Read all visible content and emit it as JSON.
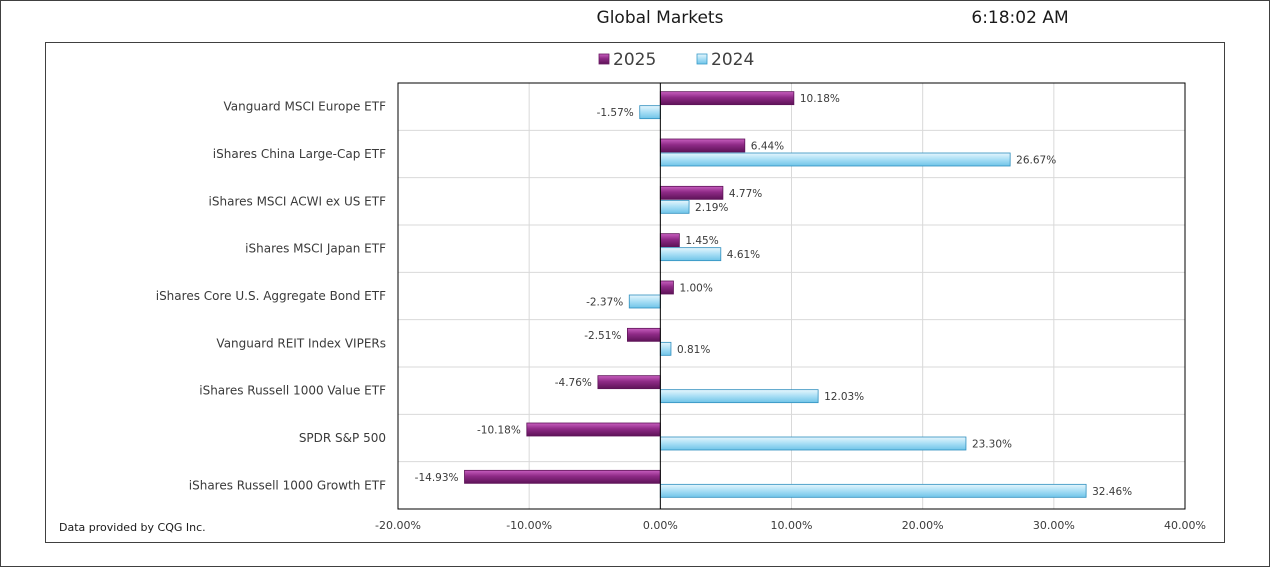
{
  "header": {
    "title": "Global Markets",
    "time": "6:18:02 AM"
  },
  "footer": {
    "source": "Data provided by CQG Inc."
  },
  "colors": {
    "series_2025": "#8e2a86",
    "series_2024": "#8fd3f0",
    "grid": "#d9d9d9",
    "axis": "#000000"
  },
  "chart_data": {
    "type": "bar",
    "orientation": "horizontal",
    "title": "Global Markets",
    "categories": [
      "Vanguard MSCI Europe ETF",
      "iShares China Large-Cap ETF",
      "iShares MSCI ACWI ex US ETF",
      "iShares MSCI Japan ETF",
      "iShares Core U.S. Aggregate Bond ETF",
      "Vanguard REIT Index VIPERs",
      "iShares Russell 1000 Value ETF",
      "SPDR S&P 500",
      "iShares Russell 1000 Growth ETF"
    ],
    "series": [
      {
        "name": "2025",
        "values": [
          10.18,
          6.44,
          4.77,
          1.45,
          1.0,
          -2.51,
          -4.76,
          -10.18,
          -14.93
        ],
        "labels": [
          "10.18%",
          "6.44%",
          "4.77%",
          "1.45%",
          "1.00%",
          "-2.51%",
          "-4.76%",
          "-10.18%",
          "-14.93%"
        ]
      },
      {
        "name": "2024",
        "values": [
          -1.57,
          26.67,
          2.19,
          4.61,
          -2.37,
          0.81,
          12.03,
          23.3,
          32.46
        ],
        "labels": [
          "-1.57%",
          "26.67%",
          "2.19%",
          "4.61%",
          "-2.37%",
          "0.81%",
          "12.03%",
          "23.30%",
          "32.46%"
        ]
      }
    ],
    "xlim": [
      -20,
      40
    ],
    "x_ticks": [
      -20,
      -10,
      0,
      10,
      20,
      30,
      40
    ],
    "x_tick_labels": [
      "-20.00%",
      "-10.00%",
      "0.00%",
      "10.00%",
      "20.00%",
      "30.00%",
      "40.00%"
    ],
    "grid": true,
    "legend": "top-center"
  }
}
